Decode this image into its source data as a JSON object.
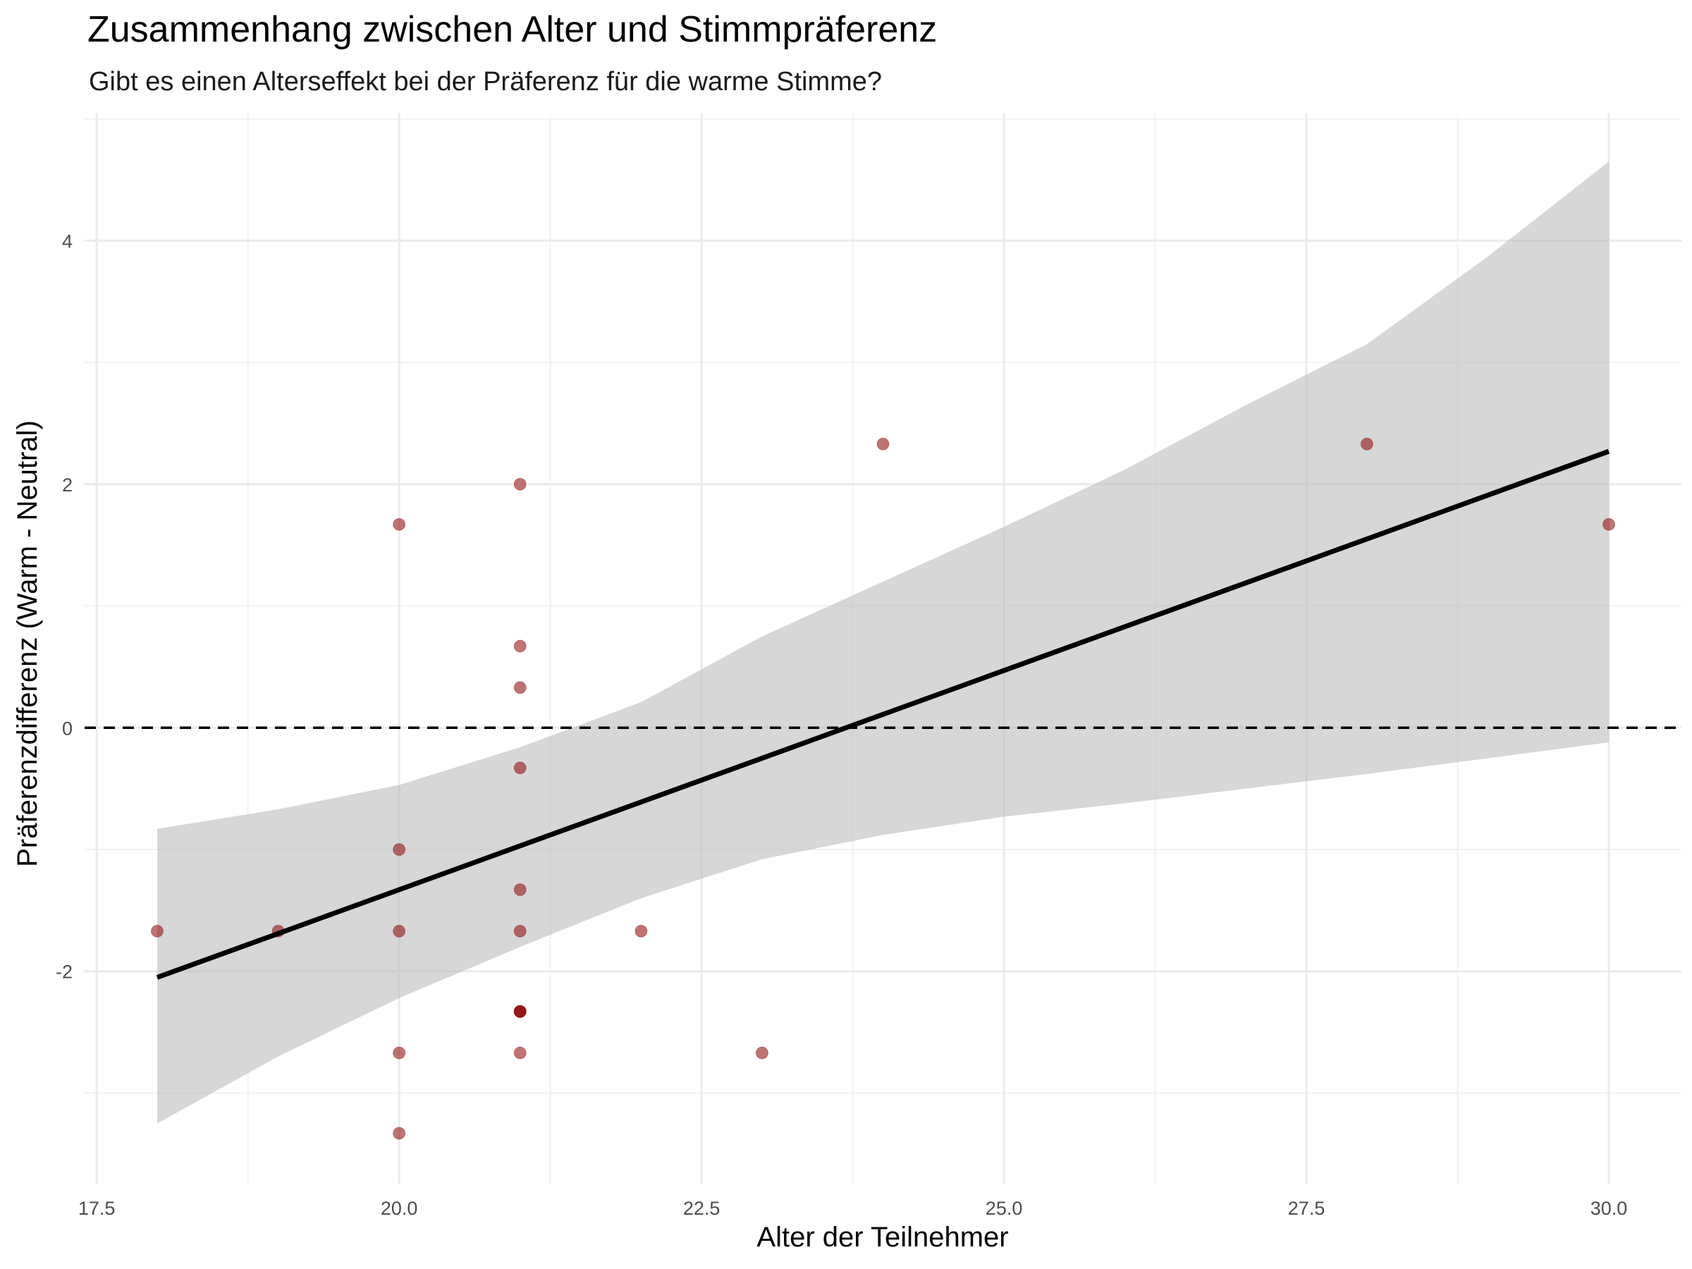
{
  "chart_data": {
    "type": "scatter",
    "title": "Zusammenhang zwischen Alter und Stimmpräferenz",
    "subtitle": "Gibt es einen Alterseffekt bei der Präferenz für die warme Stimme?",
    "xlabel": "Alter der Teilnehmer",
    "ylabel": "Präferenzdifferenz (Warm - Neutral)",
    "xlim": [
      17.4,
      30.6
    ],
    "ylim": [
      -3.75,
      5.05
    ],
    "x_ticks": [
      "17.5",
      "20.0",
      "22.5",
      "25.0",
      "27.5",
      "30.0"
    ],
    "y_ticks": [
      "-2",
      "0",
      "2",
      "4"
    ],
    "grid": true,
    "point_color": "#8b0000",
    "line_color": "#000000",
    "band_color": "#bebebe",
    "reference_line": {
      "y": 0,
      "style": "dashed"
    },
    "points": [
      {
        "x": 18,
        "y": -1.67
      },
      {
        "x": 19,
        "y": -1.67
      },
      {
        "x": 20,
        "y": 1.67
      },
      {
        "x": 20,
        "y": -1.0
      },
      {
        "x": 20,
        "y": -1.67
      },
      {
        "x": 20,
        "y": -2.67
      },
      {
        "x": 20,
        "y": -3.33
      },
      {
        "x": 21,
        "y": 2.0
      },
      {
        "x": 21,
        "y": 0.67
      },
      {
        "x": 21,
        "y": 0.33
      },
      {
        "x": 21,
        "y": -0.33
      },
      {
        "x": 21,
        "y": -1.33
      },
      {
        "x": 21,
        "y": -1.67
      },
      {
        "x": 21,
        "y": -2.33
      },
      {
        "x": 21,
        "y": -2.33
      },
      {
        "x": 21,
        "y": -2.33
      },
      {
        "x": 21,
        "y": -2.67
      },
      {
        "x": 22,
        "y": -1.67
      },
      {
        "x": 23,
        "y": -2.67
      },
      {
        "x": 24,
        "y": 2.33
      },
      {
        "x": 28,
        "y": 2.33
      },
      {
        "x": 30,
        "y": 1.67
      }
    ],
    "regression": {
      "x": [
        18,
        30
      ],
      "y": [
        -2.05,
        2.27
      ]
    },
    "confidence_band": {
      "x": [
        18,
        19,
        20,
        21,
        22,
        23,
        24,
        25,
        26,
        27,
        28,
        29,
        30
      ],
      "lower": [
        -3.25,
        -2.7,
        -2.22,
        -1.8,
        -1.4,
        -1.08,
        -0.88,
        -0.73,
        -0.62,
        -0.5,
        -0.38,
        -0.25,
        -0.12
      ],
      "upper": [
        -0.83,
        -0.67,
        -0.47,
        -0.16,
        0.21,
        0.75,
        1.2,
        1.65,
        2.12,
        2.65,
        3.15,
        3.87,
        4.65
      ]
    }
  }
}
